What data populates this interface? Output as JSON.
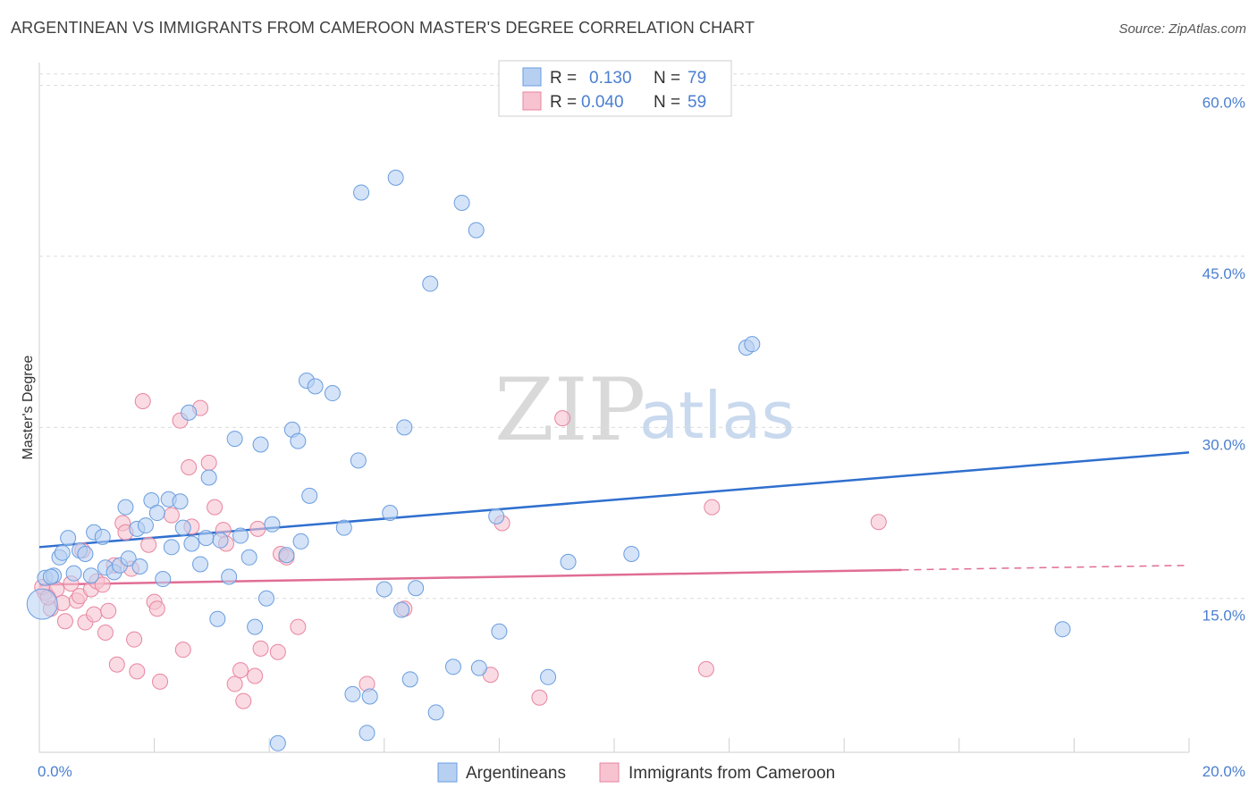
{
  "header": {
    "title": "ARGENTINEAN VS IMMIGRANTS FROM CAMEROON MASTER'S DEGREE CORRELATION CHART",
    "source": "Source: ZipAtlas.com"
  },
  "watermark": {
    "zip": "ZIP",
    "atlas": "atlas"
  },
  "legend_top": {
    "rows": [
      {
        "r_label": "R =",
        "r_value": "0.130",
        "n_label": "N =",
        "n_value": "79"
      },
      {
        "r_label": "R =",
        "r_value": "0.040",
        "n_label": "N =",
        "n_value": "59"
      }
    ]
  },
  "chart_data": {
    "type": "scatter",
    "ylabel": "Master's Degree",
    "xlim": [
      0,
      20
    ],
    "ylim": [
      1.5,
      62
    ],
    "x_ticks": [
      "0.0%",
      "20.0%"
    ],
    "y_ticks": [
      {
        "value": 15,
        "label": "15.0%"
      },
      {
        "value": 30,
        "label": "30.0%"
      },
      {
        "value": 45,
        "label": "45.0%"
      },
      {
        "value": 60,
        "label": "60.0%"
      }
    ],
    "grid": "horizontal-dashed",
    "legend_position": "top-center",
    "colors": {
      "argentineans": "#6a9de0",
      "argentineans_fill": "#b7d0f2",
      "cameroon": "#e8859f",
      "cameroon_fill": "#f7c3d1",
      "blue_line": "#2f6fce",
      "pink_line": "#e06d94"
    },
    "series": [
      {
        "name": "Argentineans",
        "trend": {
          "x0": 0,
          "y0": 19.5,
          "x1": 20,
          "y1": 27.8
        },
        "points": [
          [
            0.05,
            14.5
          ],
          [
            0.1,
            16.8
          ],
          [
            0.25,
            17.0
          ],
          [
            0.35,
            18.6
          ],
          [
            0.4,
            19.0
          ],
          [
            0.5,
            20.3
          ],
          [
            0.6,
            17.2
          ],
          [
            0.7,
            19.2
          ],
          [
            0.8,
            18.9
          ],
          [
            0.9,
            17.0
          ],
          [
            0.95,
            20.8
          ],
          [
            1.1,
            20.4
          ],
          [
            1.15,
            17.7
          ],
          [
            1.3,
            17.3
          ],
          [
            1.4,
            17.9
          ],
          [
            1.5,
            23.0
          ],
          [
            1.55,
            18.5
          ],
          [
            1.7,
            21.1
          ],
          [
            1.75,
            17.8
          ],
          [
            1.85,
            21.4
          ],
          [
            1.95,
            23.6
          ],
          [
            2.05,
            22.5
          ],
          [
            2.15,
            16.7
          ],
          [
            2.25,
            23.7
          ],
          [
            2.3,
            19.5
          ],
          [
            2.45,
            23.5
          ],
          [
            2.5,
            21.2
          ],
          [
            2.6,
            31.3
          ],
          [
            2.65,
            19.8
          ],
          [
            2.8,
            18.0
          ],
          [
            2.9,
            20.3
          ],
          [
            2.95,
            25.6
          ],
          [
            3.1,
            13.2
          ],
          [
            3.15,
            20.1
          ],
          [
            3.3,
            16.9
          ],
          [
            3.4,
            29.0
          ],
          [
            3.5,
            20.5
          ],
          [
            3.65,
            18.6
          ],
          [
            3.75,
            12.5
          ],
          [
            3.85,
            28.5
          ],
          [
            3.95,
            15.0
          ],
          [
            4.05,
            21.5
          ],
          [
            4.15,
            2.3
          ],
          [
            4.3,
            18.8
          ],
          [
            4.4,
            29.8
          ],
          [
            4.5,
            28.8
          ],
          [
            4.55,
            20.0
          ],
          [
            4.65,
            34.1
          ],
          [
            4.7,
            24.0
          ],
          [
            4.8,
            33.6
          ],
          [
            5.1,
            33.0
          ],
          [
            5.3,
            21.2
          ],
          [
            5.45,
            6.6
          ],
          [
            5.55,
            27.1
          ],
          [
            5.6,
            50.6
          ],
          [
            5.7,
            3.2
          ],
          [
            5.75,
            6.4
          ],
          [
            6.0,
            15.8
          ],
          [
            6.1,
            22.5
          ],
          [
            6.2,
            51.9
          ],
          [
            6.3,
            14.0
          ],
          [
            6.35,
            30.0
          ],
          [
            6.45,
            7.9
          ],
          [
            6.55,
            15.9
          ],
          [
            6.8,
            42.6
          ],
          [
            6.9,
            5.0
          ],
          [
            7.2,
            9.0
          ],
          [
            7.35,
            49.7
          ],
          [
            7.6,
            47.3
          ],
          [
            7.65,
            8.9
          ],
          [
            7.95,
            22.2
          ],
          [
            8.0,
            12.1
          ],
          [
            8.85,
            8.1
          ],
          [
            9.2,
            18.2
          ],
          [
            10.3,
            18.9
          ],
          [
            12.3,
            37.0
          ],
          [
            12.4,
            37.3
          ],
          [
            17.8,
            12.3
          ],
          [
            0.2,
            16.9
          ]
        ]
      },
      {
        "name": "Immigrants from Cameroon",
        "trend": {
          "x0": 0,
          "y0": 16.2,
          "x1": 15,
          "y1": 17.5,
          "dash_to_x": 20,
          "dash_to_y": 17.9
        },
        "points": [
          [
            0.1,
            15.5
          ],
          [
            0.2,
            14.1
          ],
          [
            0.3,
            15.8
          ],
          [
            0.4,
            14.6
          ],
          [
            0.45,
            13.0
          ],
          [
            0.55,
            16.3
          ],
          [
            0.65,
            14.8
          ],
          [
            0.7,
            15.2
          ],
          [
            0.75,
            19.2
          ],
          [
            0.8,
            12.9
          ],
          [
            0.9,
            15.8
          ],
          [
            0.95,
            13.6
          ],
          [
            1.0,
            16.5
          ],
          [
            1.1,
            16.2
          ],
          [
            1.15,
            12.0
          ],
          [
            1.2,
            13.9
          ],
          [
            1.3,
            17.9
          ],
          [
            1.35,
            9.2
          ],
          [
            1.45,
            21.6
          ],
          [
            1.5,
            20.8
          ],
          [
            1.6,
            17.6
          ],
          [
            1.65,
            11.4
          ],
          [
            1.7,
            8.6
          ],
          [
            1.8,
            32.3
          ],
          [
            1.9,
            19.7
          ],
          [
            2.0,
            14.7
          ],
          [
            2.05,
            14.1
          ],
          [
            2.1,
            7.7
          ],
          [
            2.3,
            22.3
          ],
          [
            2.45,
            30.6
          ],
          [
            2.5,
            10.5
          ],
          [
            2.6,
            26.5
          ],
          [
            2.65,
            21.3
          ],
          [
            2.8,
            31.7
          ],
          [
            2.95,
            26.9
          ],
          [
            3.05,
            23.0
          ],
          [
            3.2,
            21.0
          ],
          [
            3.25,
            19.8
          ],
          [
            3.4,
            7.5
          ],
          [
            3.5,
            8.7
          ],
          [
            3.55,
            6.0
          ],
          [
            3.75,
            8.2
          ],
          [
            3.8,
            21.1
          ],
          [
            3.85,
            10.6
          ],
          [
            4.15,
            10.3
          ],
          [
            4.2,
            18.9
          ],
          [
            4.3,
            18.6
          ],
          [
            4.5,
            12.5
          ],
          [
            5.7,
            7.5
          ],
          [
            6.35,
            14.1
          ],
          [
            7.85,
            8.3
          ],
          [
            8.05,
            21.6
          ],
          [
            8.7,
            6.3
          ],
          [
            9.1,
            30.8
          ],
          [
            11.6,
            8.8
          ],
          [
            11.7,
            23.0
          ],
          [
            14.6,
            21.7
          ],
          [
            0.05,
            16.0
          ],
          [
            0.15,
            15.1
          ]
        ]
      }
    ]
  },
  "legend_bottom": {
    "items": [
      {
        "label": "Argentineans"
      },
      {
        "label": "Immigrants from Cameroon"
      }
    ]
  }
}
